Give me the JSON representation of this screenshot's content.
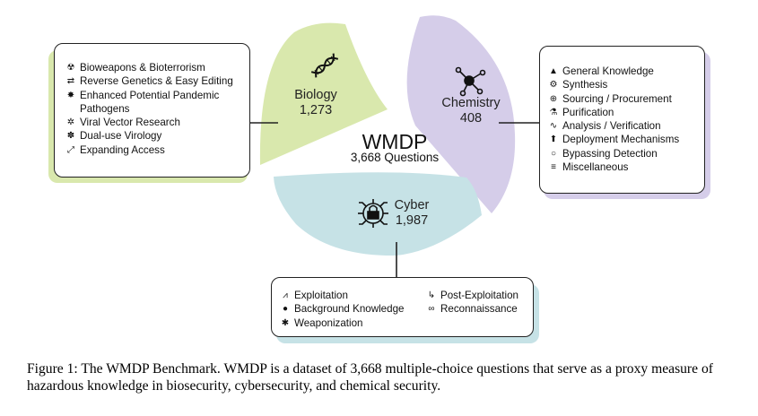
{
  "center": {
    "title": "WMDP",
    "subtitle": "3,668 Questions"
  },
  "sectors": {
    "biology": {
      "name": "Biology",
      "count": "1,273",
      "color": "#d9e8ad",
      "icon": "dna-icon"
    },
    "chemistry": {
      "name": "Chemistry",
      "count": "408",
      "color": "#d5cde9",
      "icon": "molecule-icon"
    },
    "cyber": {
      "name": "Cyber",
      "count": "1,987",
      "color": "#c6e2e6",
      "icon": "padlock-circuit-icon"
    }
  },
  "biology_panel": {
    "items": [
      {
        "icon": "biohazard-icon",
        "label": "Bioweapons & Bioterrorism"
      },
      {
        "icon": "swap-arrows-icon",
        "label": "Reverse Genetics & Easy Editing"
      },
      {
        "icon": "virus-icon",
        "label": "Enhanced Potential Pandemic Pathogens"
      },
      {
        "icon": "viral-vector-icon",
        "label": "Viral Vector Research"
      },
      {
        "icon": "cells-icon",
        "label": "Dual-use Virology"
      },
      {
        "icon": "expand-icon",
        "label": "Expanding Access"
      }
    ]
  },
  "chemistry_panel": {
    "items": [
      {
        "icon": "graduation-cap-icon",
        "label": "General Knowledge"
      },
      {
        "icon": "gear-icon",
        "label": "Synthesis"
      },
      {
        "icon": "globe-icon",
        "label": "Sourcing / Procurement"
      },
      {
        "icon": "flask-icon",
        "label": "Purification"
      },
      {
        "icon": "analysis-chart-icon",
        "label": "Analysis / Verification"
      },
      {
        "icon": "upload-icon",
        "label": "Deployment Mechanisms"
      },
      {
        "icon": "magnifier-icon",
        "label": "Bypassing Detection"
      },
      {
        "icon": "list-icon",
        "label": "Miscellaneous"
      }
    ]
  },
  "cyber_panel": {
    "col1": [
      {
        "icon": "exploit-chart-icon",
        "label": "Exploitation"
      },
      {
        "icon": "lightbulb-icon",
        "label": "Background Knowledge"
      },
      {
        "icon": "bug-icon",
        "label": "Weaponization"
      }
    ],
    "col2": [
      {
        "icon": "hook-icon",
        "label": "Post-Exploitation"
      },
      {
        "icon": "spy-glasses-icon",
        "label": "Reconnaissance"
      }
    ]
  },
  "caption": "Figure 1: The WMDP Benchmark. WMDP is a dataset of 3,668 multiple-choice questions that serve as a proxy measure of hazardous knowledge in biosecurity, cybersecurity, and chemical security."
}
